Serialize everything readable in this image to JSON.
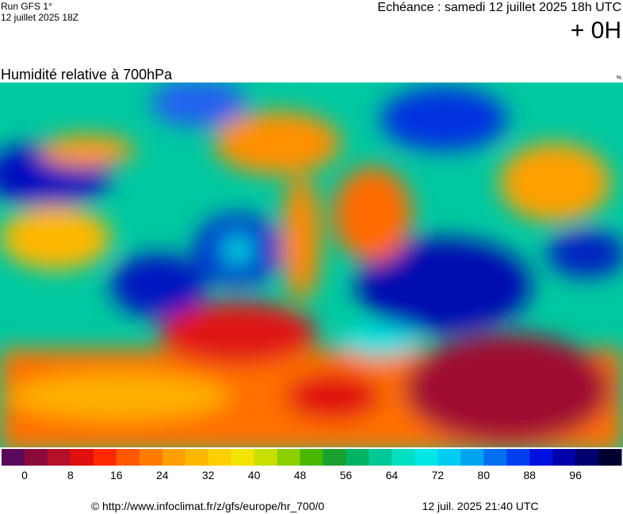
{
  "header": {
    "run": "Run GFS 1°",
    "run_date": "12 juillet 2025 18Z",
    "forecast": "Echéance : samedi 12 juillet 2025 18h UTC",
    "lead": "+ 0H"
  },
  "map": {
    "title": "Humidité relative à 700hPa",
    "unit": "%"
  },
  "colorbar": {
    "colors": [
      "#5a0a5a",
      "#8b0a3a",
      "#b4102a",
      "#e01010",
      "#ff2800",
      "#ff5800",
      "#ff7c00",
      "#ffa000",
      "#ffb800",
      "#ffcf00",
      "#f2e400",
      "#c8e000",
      "#8cd000",
      "#48b800",
      "#18a030",
      "#00b464",
      "#00c896",
      "#00e0c0",
      "#00e6e6",
      "#00ccf4",
      "#00a4f0",
      "#0070f0",
      "#0040f0",
      "#0010e0",
      "#0000aa",
      "#00006e",
      "#000030"
    ],
    "tick_labels": [
      "0",
      "8",
      "16",
      "24",
      "32",
      "40",
      "48",
      "56",
      "64",
      "72",
      "80",
      "88",
      "96"
    ]
  },
  "footer": {
    "source": "© http://www.infoclimat.fr/z/gfs/europe/hr_700/0",
    "generated": "12 juil. 2025 21:40 UTC"
  }
}
